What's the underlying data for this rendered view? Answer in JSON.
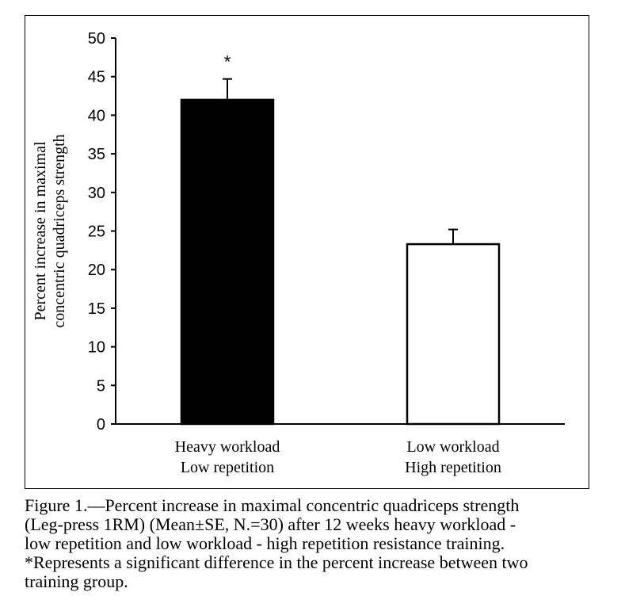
{
  "chart_data": {
    "type": "bar",
    "categories": [
      [
        "Heavy workload",
        "Low repetition"
      ],
      [
        "Low workload",
        "High repetition"
      ]
    ],
    "values": [
      42,
      23.3
    ],
    "errors": [
      2.7,
      1.9
    ],
    "bar_colors": [
      "#000000",
      "#ffffff"
    ],
    "ylabel": [
      "Percent increase in maximal",
      "concentric quadriceps strength"
    ],
    "ylim": [
      0,
      50
    ],
    "yticks": [
      0,
      5,
      10,
      15,
      20,
      25,
      30,
      35,
      40,
      45,
      50
    ],
    "annotations": [
      {
        "category_index": 0,
        "text": "*"
      }
    ],
    "grid": false,
    "legend": "none"
  },
  "caption": {
    "lines": [
      "Figure 1.—Percent increase in maximal concentric quadriceps strength",
      "(Leg-press 1RM) (Mean±SE, N.=30) after 12 weeks heavy workload -",
      "low repetition and low workload - high repetition resistance training.",
      "*Represents a significant difference in the percent increase between two",
      "training group."
    ]
  }
}
